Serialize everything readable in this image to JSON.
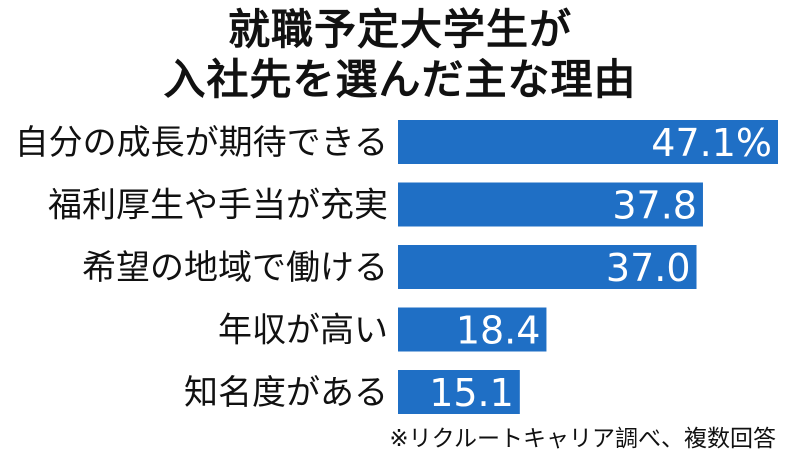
{
  "chart_data": {
    "type": "bar",
    "orientation": "horizontal",
    "title_lines": [
      "就職予定大学生が",
      "入社先を選んだ主な理由"
    ],
    "categories": [
      "自分の成長が期待できる",
      "福利厚生や手当が充実",
      "希望の地域で働ける",
      "年収が高い",
      "知名度がある"
    ],
    "values": [
      47.1,
      37.8,
      37.0,
      18.4,
      15.1
    ],
    "value_labels": [
      "47.1%",
      "37.8",
      "37.0",
      "18.4",
      "15.1"
    ],
    "bar_color": "#1f6fc5",
    "value_label_color": "#ffffff",
    "xlim": [
      0,
      47.1
    ],
    "grid": false,
    "legend": "none"
  },
  "source_note": "※リクルートキャリア調べ、複数回答"
}
